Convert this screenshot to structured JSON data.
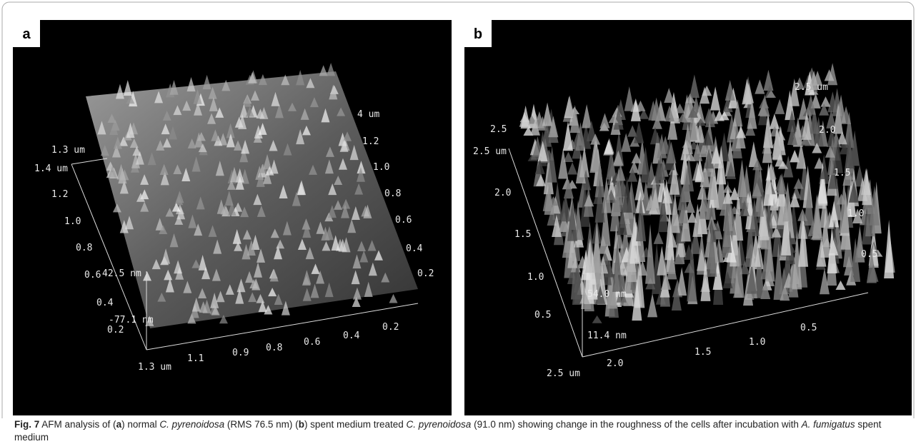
{
  "panels": [
    {
      "label": "a",
      "axis_labels": [
        "4 um",
        "1.2",
        "1.0",
        "0.8",
        "0.6",
        "0.4",
        "0.2",
        "1.3 um",
        "1.4 um",
        "1.2",
        "1.0",
        "0.8",
        "0.6",
        "42.5 nm",
        "0.4",
        "-77.1 nm",
        "0.2",
        "1.3 um",
        "1.1",
        "0.9",
        "0.8",
        "0.6",
        "0.4",
        "0.2"
      ]
    },
    {
      "label": "b",
      "axis_labels": [
        "2.5 um",
        "2.0",
        "1.5",
        "1.0",
        "0.5",
        "2.5",
        "2.5 um",
        "2.0",
        "1.5",
        "1.0",
        "54.0 nm",
        "0.5",
        "11.4 nm",
        "2.5 um",
        "2.0",
        "1.5",
        "1.0",
        "0.5"
      ]
    }
  ],
  "caption": {
    "parts": [
      "Fig. 7",
      " AFM analysis of (",
      "a",
      ") normal ",
      "C. pyrenoidosa",
      " (RMS 76.5 nm) (",
      "b",
      ") spent medium treated ",
      "C. pyrenoidosa",
      " (91.0 nm) showing change in the roughness of the cells after incubation with ",
      "A. fumigatus",
      " spent medium"
    ]
  }
}
